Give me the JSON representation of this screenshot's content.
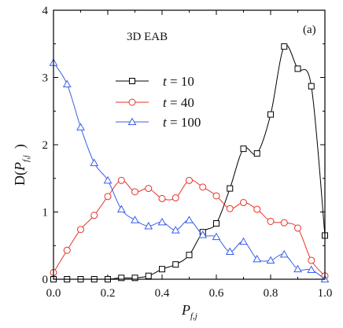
{
  "chart_data": {
    "type": "line",
    "title": "",
    "annotation": "3D EAB",
    "panel_label": "(a)",
    "xlabel": "P",
    "xlabel_sub": "f,j",
    "ylabel_parts": {
      "pre": "D(",
      "var": "P",
      "sub": "f,j",
      "post": ")"
    },
    "xlim": [
      0.0,
      1.0
    ],
    "ylim": [
      0,
      4
    ],
    "xticks": [
      0.0,
      0.2,
      0.4,
      0.6,
      0.8,
      1.0
    ],
    "xtick_labels": [
      "0.0",
      "0.2",
      "0.4",
      "0.6",
      "0.8",
      "1.0"
    ],
    "yticks": [
      0,
      1,
      2,
      3,
      4
    ],
    "ytick_labels": [
      "0",
      "1",
      "2",
      "3",
      "4"
    ],
    "legend_position": "left-middle",
    "series": [
      {
        "name": "t = 10",
        "legend_prefix": "t",
        "legend_value": "= 10",
        "color": "#000000",
        "marker": "square",
        "x": [
          0.0,
          0.05,
          0.1,
          0.15,
          0.2,
          0.25,
          0.3,
          0.35,
          0.4,
          0.45,
          0.5,
          0.55,
          0.6,
          0.65,
          0.7,
          0.75,
          0.8,
          0.85,
          0.9,
          0.95,
          1.0
        ],
        "values": [
          0.0,
          0.0,
          0.0,
          0.0,
          0.0,
          0.02,
          0.02,
          0.05,
          0.15,
          0.22,
          0.36,
          0.7,
          0.83,
          1.35,
          1.94,
          1.87,
          2.45,
          3.46,
          3.13,
          2.87,
          0.65
        ]
      },
      {
        "name": "t = 40",
        "legend_prefix": "t",
        "legend_value": "= 40",
        "color": "#e8322a",
        "marker": "circle",
        "x": [
          0.0,
          0.05,
          0.1,
          0.15,
          0.2,
          0.25,
          0.3,
          0.35,
          0.4,
          0.45,
          0.5,
          0.55,
          0.6,
          0.65,
          0.7,
          0.75,
          0.8,
          0.85,
          0.9,
          0.95,
          1.0
        ],
        "values": [
          0.1,
          0.43,
          0.74,
          0.95,
          1.23,
          1.47,
          1.3,
          1.35,
          1.2,
          1.21,
          1.47,
          1.37,
          1.24,
          1.05,
          1.14,
          1.04,
          0.86,
          0.84,
          0.76,
          0.28,
          0.05
        ]
      },
      {
        "name": "t = 100",
        "legend_prefix": "t",
        "legend_value": "= 100",
        "color": "#3a5ee8",
        "marker": "triangle",
        "x": [
          0.0,
          0.05,
          0.1,
          0.15,
          0.2,
          0.25,
          0.3,
          0.35,
          0.4,
          0.45,
          0.5,
          0.55,
          0.6,
          0.65,
          0.7,
          0.75,
          0.8,
          0.85,
          0.9,
          0.95,
          1.0
        ],
        "values": [
          3.22,
          2.9,
          2.26,
          1.73,
          1.47,
          1.04,
          0.88,
          0.79,
          0.85,
          0.73,
          0.88,
          0.66,
          0.63,
          0.41,
          0.56,
          0.3,
          0.28,
          0.37,
          0.15,
          0.14,
          0.0
        ]
      }
    ]
  }
}
